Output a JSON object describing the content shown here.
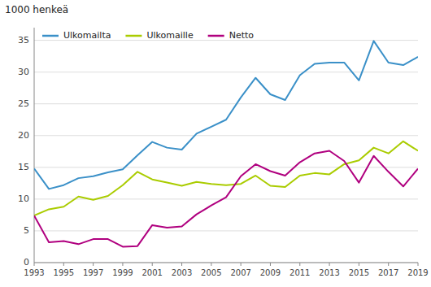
{
  "chart_data": {
    "type": "line",
    "ylabel": "1000 henkeä",
    "x": [
      1993,
      1994,
      1995,
      1996,
      1997,
      1998,
      1999,
      2000,
      2001,
      2002,
      2003,
      2004,
      2005,
      2006,
      2007,
      2008,
      2009,
      2010,
      2011,
      2012,
      2013,
      2014,
      2015,
      2016,
      2017,
      2018,
      2019
    ],
    "series": [
      {
        "name": "Ulkomailta",
        "color": "#3a90c8",
        "values": [
          14.8,
          11.6,
          12.2,
          13.3,
          13.6,
          14.2,
          14.7,
          16.9,
          19.0,
          18.1,
          17.8,
          20.3,
          21.4,
          22.5,
          26.0,
          29.1,
          26.5,
          25.6,
          29.5,
          31.3,
          31.5,
          31.5,
          28.7,
          34.9,
          31.5,
          31.1,
          32.4
        ]
      },
      {
        "name": "Ulkomaille",
        "color": "#aacc00",
        "values": [
          7.4,
          8.4,
          8.8,
          10.4,
          9.9,
          10.5,
          12.2,
          14.3,
          13.1,
          12.6,
          12.1,
          12.7,
          12.4,
          12.2,
          12.4,
          13.7,
          12.1,
          11.9,
          13.7,
          14.1,
          13.9,
          15.5,
          16.1,
          18.1,
          17.2,
          19.1,
          17.6
        ]
      },
      {
        "name": "Netto",
        "color": "#b0007f",
        "values": [
          7.4,
          3.2,
          3.4,
          2.9,
          3.7,
          3.7,
          2.5,
          2.6,
          5.9,
          5.5,
          5.7,
          7.6,
          9.0,
          10.3,
          13.6,
          15.5,
          14.4,
          13.7,
          15.8,
          17.2,
          17.6,
          16.0,
          12.6,
          16.8,
          14.3,
          12.0,
          14.8
        ]
      }
    ],
    "xlim": [
      1993,
      2019
    ],
    "xticks": [
      1993,
      1995,
      1997,
      1999,
      2001,
      2003,
      2005,
      2007,
      2009,
      2011,
      2013,
      2015,
      2017,
      2019
    ],
    "ylim": [
      0,
      37
    ],
    "yticks": [
      0,
      5,
      10,
      15,
      20,
      25,
      30,
      35
    ],
    "grid": true,
    "legend": "upper left"
  }
}
